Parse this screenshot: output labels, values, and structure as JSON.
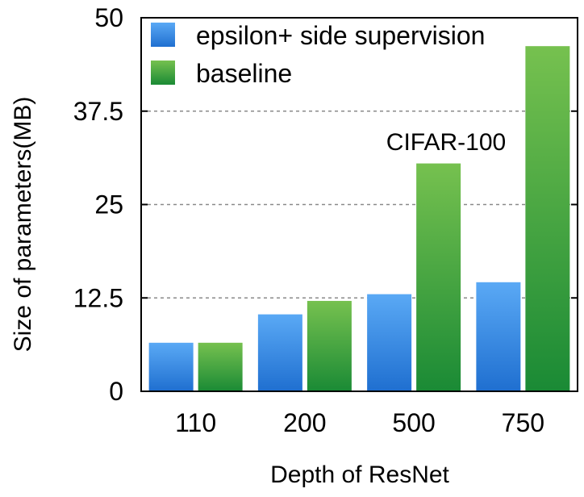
{
  "chart_data": {
    "type": "bar",
    "categories": [
      "110",
      "200",
      "500",
      "750"
    ],
    "series": [
      {
        "name": "epsilon+ side supervision",
        "values": [
          6.5,
          10.3,
          13.0,
          14.6
        ],
        "color_top": "#5aa9f5",
        "color_bottom": "#1f6fd0"
      },
      {
        "name": "baseline",
        "values": [
          6.5,
          12.1,
          30.5,
          46.2
        ],
        "color_top": "#76c14f",
        "color_bottom": "#1a8a35"
      }
    ],
    "xlabel": "Depth of ResNet",
    "ylabel": "Size of parameters(MB)",
    "ylim": [
      0,
      50
    ],
    "yticks": [
      "0",
      "12.5",
      "25",
      "37.5",
      "50"
    ],
    "grid": true,
    "legend_position": "top-left",
    "annotation": "CIFAR-100"
  }
}
